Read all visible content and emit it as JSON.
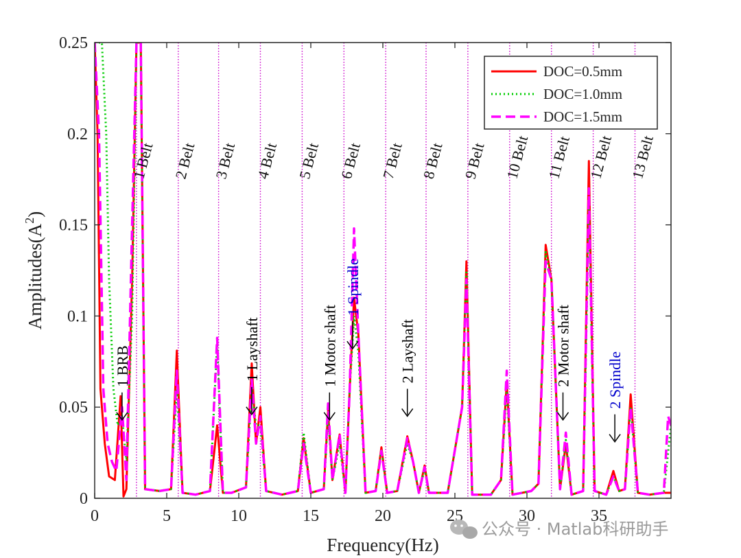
{
  "chart_data": {
    "type": "line",
    "xlabel": "Frequency(Hz)",
    "ylabel": "Amplitudes(A",
    "ylabel_sup": "2",
    "ylabel_close": ")",
    "xlim": [
      0,
      40
    ],
    "ylim": [
      0,
      0.25
    ],
    "xticks": [
      0,
      5,
      10,
      15,
      20,
      25,
      30,
      35
    ],
    "xtick_labels": [
      "0",
      "5",
      "10",
      "15",
      "20",
      "25",
      "30",
      "35"
    ],
    "yticks": [
      0,
      0.05,
      0.1,
      0.15,
      0.2,
      0.25
    ],
    "ytick_labels": [
      "0",
      "0.05",
      "0.1",
      "0.15",
      "0.2",
      "0.25"
    ],
    "legend_position": "top-right",
    "grid": false,
    "series": [
      {
        "name": "DOC=0.5mm",
        "color": "#ff0000",
        "style": "solid",
        "x": [
          0,
          0.2,
          0.4,
          0.7,
          1.0,
          1.4,
          1.8,
          2.0,
          2.2,
          2.6,
          2.9,
          3.2,
          3.5,
          4.5,
          5.3,
          5.7,
          6.1,
          7.0,
          8.0,
          8.5,
          8.9,
          9.5,
          10.5,
          10.9,
          11.2,
          11.5,
          11.9,
          13.0,
          14.1,
          14.5,
          15.0,
          15.9,
          16.2,
          16.5,
          17.0,
          17.4,
          17.7,
          18.0,
          18.3,
          18.8,
          19.5,
          19.9,
          20.3,
          21.0,
          21.7,
          22.1,
          22.5,
          22.9,
          23.2,
          24.5,
          25.5,
          25.8,
          26.2,
          27.5,
          28.2,
          28.6,
          29.0,
          30.3,
          30.8,
          31.3,
          31.7,
          32.3,
          32.7,
          33.1,
          33.9,
          34.3,
          34.7,
          35.5,
          36.0,
          36.4,
          36.8,
          37.2,
          37.7,
          38.5,
          39.5,
          40.0
        ],
        "y": [
          0.25,
          0.2,
          0.06,
          0.03,
          0.012,
          0.01,
          0.056,
          0.001,
          0.005,
          0.12,
          0.25,
          0.25,
          0.005,
          0.004,
          0.005,
          0.081,
          0.003,
          0.002,
          0.004,
          0.04,
          0.003,
          0.003,
          0.006,
          0.074,
          0.03,
          0.05,
          0.004,
          0.002,
          0.004,
          0.033,
          0.003,
          0.005,
          0.048,
          0.01,
          0.035,
          0.003,
          0.06,
          0.11,
          0.09,
          0.003,
          0.004,
          0.028,
          0.003,
          0.004,
          0.034,
          0.02,
          0.003,
          0.018,
          0.003,
          0.003,
          0.05,
          0.13,
          0.002,
          0.002,
          0.01,
          0.064,
          0.002,
          0.004,
          0.008,
          0.139,
          0.12,
          0.005,
          0.03,
          0.002,
          0.004,
          0.185,
          0.004,
          0.002,
          0.015,
          0.004,
          0.005,
          0.057,
          0.003,
          0.002,
          0.003,
          0.003
        ]
      },
      {
        "name": "DOC=1.0mm",
        "color": "#00cc00",
        "style": "dotted",
        "x": [
          0,
          0.5,
          0.8,
          1.0,
          1.3,
          1.6,
          1.9,
          2.2,
          2.6,
          2.9,
          3.2,
          3.5,
          4.5,
          5.3,
          5.7,
          6.1,
          7.0,
          8.0,
          8.5,
          8.9,
          9.5,
          10.5,
          10.9,
          11.2,
          11.5,
          11.9,
          13.0,
          14.1,
          14.5,
          15.0,
          15.9,
          16.2,
          16.5,
          17.0,
          17.4,
          17.7,
          18.0,
          18.3,
          18.8,
          19.5,
          19.9,
          20.3,
          21.0,
          21.7,
          22.1,
          22.5,
          22.9,
          23.2,
          24.5,
          25.5,
          25.8,
          26.2,
          27.5,
          28.2,
          28.6,
          29.0,
          30.3,
          30.8,
          31.3,
          31.7,
          32.3,
          32.7,
          33.1,
          33.9,
          34.3,
          34.7,
          35.5,
          36.0,
          36.4,
          36.8,
          37.2,
          37.7,
          38.5,
          39.5,
          40.0
        ],
        "y": [
          0.25,
          0.25,
          0.2,
          0.12,
          0.06,
          0.04,
          0.045,
          0.02,
          0.1,
          0.25,
          0.25,
          0.005,
          0.004,
          0.005,
          0.06,
          0.003,
          0.002,
          0.004,
          0.085,
          0.003,
          0.003,
          0.006,
          0.06,
          0.04,
          0.04,
          0.004,
          0.002,
          0.004,
          0.036,
          0.003,
          0.005,
          0.045,
          0.01,
          0.03,
          0.003,
          0.06,
          0.1,
          0.08,
          0.003,
          0.004,
          0.027,
          0.003,
          0.004,
          0.03,
          0.02,
          0.003,
          0.016,
          0.003,
          0.003,
          0.05,
          0.125,
          0.002,
          0.002,
          0.01,
          0.06,
          0.002,
          0.004,
          0.008,
          0.135,
          0.12,
          0.005,
          0.032,
          0.002,
          0.004,
          0.16,
          0.004,
          0.002,
          0.012,
          0.004,
          0.005,
          0.05,
          0.003,
          0.002,
          0.003,
          0.04
        ]
      },
      {
        "name": "DOC=1.5mm",
        "color": "#ff00ff",
        "style": "dashed",
        "x": [
          0,
          0.3,
          0.6,
          0.9,
          1.2,
          1.5,
          1.9,
          2.2,
          2.6,
          2.9,
          3.2,
          3.5,
          4.5,
          5.3,
          5.7,
          6.1,
          7.0,
          8.0,
          8.5,
          8.9,
          9.5,
          10.5,
          10.9,
          11.2,
          11.5,
          11.9,
          13.0,
          14.1,
          14.5,
          15.0,
          15.9,
          16.2,
          16.5,
          17.0,
          17.4,
          17.7,
          18.0,
          18.3,
          18.8,
          19.5,
          19.9,
          20.3,
          21.0,
          21.7,
          22.1,
          22.5,
          22.9,
          23.2,
          24.5,
          25.5,
          25.8,
          26.2,
          27.5,
          28.2,
          28.6,
          29.0,
          30.3,
          30.8,
          31.3,
          31.7,
          32.3,
          32.7,
          33.1,
          33.9,
          34.3,
          34.7,
          35.5,
          36.0,
          36.4,
          36.8,
          37.2,
          37.7,
          38.5,
          39.5,
          39.8,
          40.0
        ],
        "y": [
          0.25,
          0.2,
          0.06,
          0.03,
          0.02,
          0.015,
          0.05,
          0.01,
          0.15,
          0.25,
          0.25,
          0.005,
          0.004,
          0.005,
          0.07,
          0.003,
          0.002,
          0.004,
          0.088,
          0.003,
          0.003,
          0.006,
          0.065,
          0.03,
          0.045,
          0.004,
          0.002,
          0.004,
          0.03,
          0.003,
          0.005,
          0.052,
          0.01,
          0.035,
          0.003,
          0.06,
          0.148,
          0.09,
          0.003,
          0.004,
          0.026,
          0.003,
          0.004,
          0.033,
          0.02,
          0.003,
          0.017,
          0.003,
          0.003,
          0.05,
          0.12,
          0.002,
          0.002,
          0.01,
          0.07,
          0.002,
          0.004,
          0.008,
          0.13,
          0.12,
          0.005,
          0.036,
          0.002,
          0.004,
          0.17,
          0.004,
          0.002,
          0.012,
          0.004,
          0.005,
          0.05,
          0.003,
          0.002,
          0.003,
          0.045,
          0.04
        ]
      }
    ],
    "vlines": {
      "color": "#cc00cc",
      "x": [
        2.9,
        5.8,
        8.6,
        11.5,
        14.4,
        17.3,
        20.2,
        23.0,
        25.9,
        28.8,
        31.7,
        34.6,
        37.5
      ],
      "labels": [
        "1 Belt",
        "2 Belt",
        "3 Belt",
        "4 Belt",
        "5 Belt",
        "6 Belt",
        "7 Belt",
        "8 Belt",
        "9 Belt",
        "10 Belt",
        "11 Belt",
        "12 Belt",
        "13 Belt"
      ]
    },
    "annotations": [
      {
        "text": "1 BRB",
        "x": 1.9,
        "y": 0.043,
        "color": "#000000"
      },
      {
        "text": "1 Layshaft",
        "x": 10.9,
        "y": 0.046,
        "color": "#000000"
      },
      {
        "text": "1 Motor shaft",
        "x": 16.3,
        "y": 0.043,
        "color": "#000000"
      },
      {
        "text": "1 Spindle",
        "x": 17.9,
        "y": 0.082,
        "color": "#0000cc"
      },
      {
        "text": "2 Layshaft",
        "x": 21.7,
        "y": 0.045,
        "color": "#000000"
      },
      {
        "text": "2 Motor shaft",
        "x": 32.5,
        "y": 0.043,
        "color": "#000000"
      },
      {
        "text": "2 Spindle",
        "x": 36.1,
        "y": 0.031,
        "color": "#0000cc"
      }
    ]
  },
  "watermark": {
    "icon": "wechat-icon",
    "text": "公众号 · Matlab科研助手"
  }
}
